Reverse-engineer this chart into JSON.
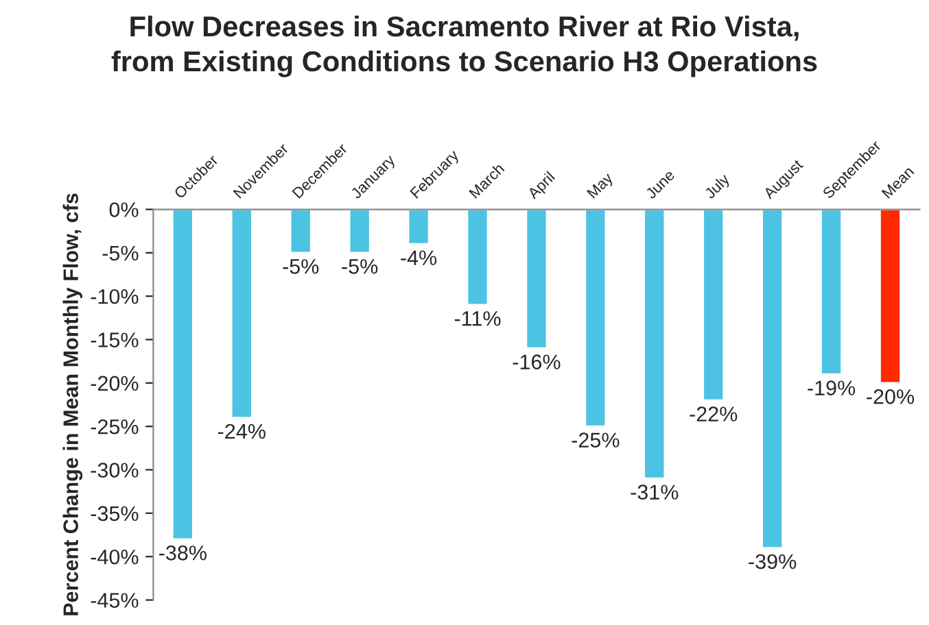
{
  "chart_data": {
    "type": "bar",
    "title": "Flow Decreases in Sacramento River at Rio Vista,\nfrom Existing Conditions to Scenario H3 Operations",
    "ylabel": "Percent Change in Mean Monthly Flow, cfs",
    "categories": [
      "October",
      "November",
      "December",
      "January",
      "February",
      "March",
      "April",
      "May",
      "June",
      "July",
      "August",
      "September",
      "Mean"
    ],
    "values": [
      -38,
      -24,
      -5,
      -5,
      -4,
      -11,
      -16,
      -25,
      -31,
      -22,
      -39,
      -19,
      -20
    ],
    "colors": [
      "#4cc3e3",
      "#4cc3e3",
      "#4cc3e3",
      "#4cc3e3",
      "#4cc3e3",
      "#4cc3e3",
      "#4cc3e3",
      "#4cc3e3",
      "#4cc3e3",
      "#4cc3e3",
      "#4cc3e3",
      "#4cc3e3",
      "#ff2a00"
    ],
    "value_labels": [
      "-38%",
      "-24%",
      "-5%",
      "-5%",
      "-4%",
      "-11%",
      "-16%",
      "-25%",
      "-31%",
      "-22%",
      "-39%",
      "-19%",
      "-20%"
    ],
    "ylim": [
      -45,
      0
    ],
    "yticks": [
      {
        "value": 0,
        "label": "0%"
      },
      {
        "value": -5,
        "label": "-5%"
      },
      {
        "value": -10,
        "label": "-10%"
      },
      {
        "value": -15,
        "label": "-15%"
      },
      {
        "value": -20,
        "label": "-20%"
      },
      {
        "value": -25,
        "label": "-25%"
      },
      {
        "value": -30,
        "label": "-30%"
      },
      {
        "value": -35,
        "label": "-35%"
      },
      {
        "value": -40,
        "label": "-40%"
      },
      {
        "value": -45,
        "label": "-45%"
      }
    ],
    "grid": false,
    "legend": false
  }
}
